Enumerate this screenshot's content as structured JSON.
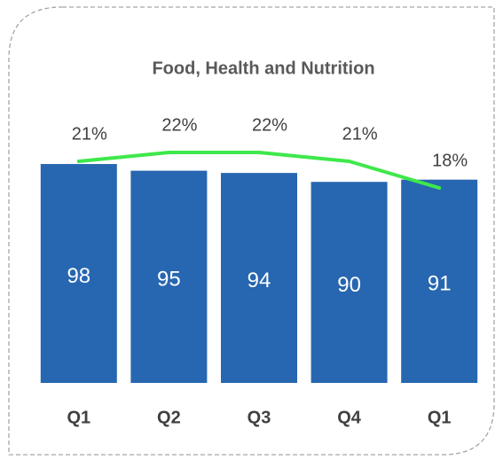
{
  "chart_data": {
    "type": "bar",
    "title": "Food, Health and Nutrition",
    "categories": [
      "Q1",
      "Q2",
      "Q3",
      "Q4",
      "Q1"
    ],
    "series": [
      {
        "type": "bar",
        "color": "#2766b0",
        "values": [
          98,
          95,
          94,
          90,
          91
        ]
      },
      {
        "type": "line",
        "axis": "y2",
        "color": "#3ee84a",
        "values": [
          21,
          22,
          22,
          21,
          18
        ],
        "value_labels": [
          "21%",
          "22%",
          "22%",
          "21%",
          "18%"
        ]
      }
    ],
    "ylim": [
      0,
      100
    ],
    "y2lim": [
      15,
      25
    ]
  }
}
